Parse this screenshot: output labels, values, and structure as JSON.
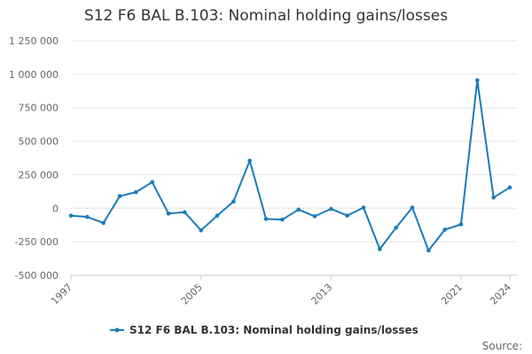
{
  "chart_data": {
    "type": "line",
    "title": "S12 F6 BAL B.103: Nominal holding gains/losses",
    "x_tick_labels": [
      "1997",
      "2005",
      "2013",
      "2021",
      "2024"
    ],
    "y_tick_labels": [
      "1 250 000",
      "1 000 000",
      "750 000",
      "500 000",
      "250 000",
      "0",
      "-250 000",
      "-500 000"
    ],
    "ylim": [
      -500000,
      1250000
    ],
    "xlim": [
      1997,
      2024
    ],
    "grid": true,
    "legend_position": "bottom",
    "series": [
      {
        "name": "S12 F6 BAL B.103: Nominal holding gains/losses",
        "color": "#1a7bb9",
        "x": [
          1997,
          1998,
          1999,
          2000,
          2001,
          2002,
          2003,
          2004,
          2005,
          2006,
          2007,
          2008,
          2009,
          2010,
          2011,
          2012,
          2013,
          2014,
          2015,
          2016,
          2017,
          2018,
          2019,
          2020,
          2021,
          2022,
          2023,
          2024
        ],
        "values": [
          -55000,
          -65000,
          -110000,
          90000,
          120000,
          195000,
          -40000,
          -30000,
          -165000,
          -55000,
          50000,
          355000,
          -80000,
          -85000,
          -10000,
          -60000,
          -5000,
          -55000,
          5000,
          -305000,
          -145000,
          5000,
          -315000,
          -160000,
          -120000,
          955000,
          80000,
          155000
        ]
      }
    ],
    "legend_label": "S12 F6 BAL B.103: Nominal holding gains/losses",
    "source_label": "Source:"
  }
}
